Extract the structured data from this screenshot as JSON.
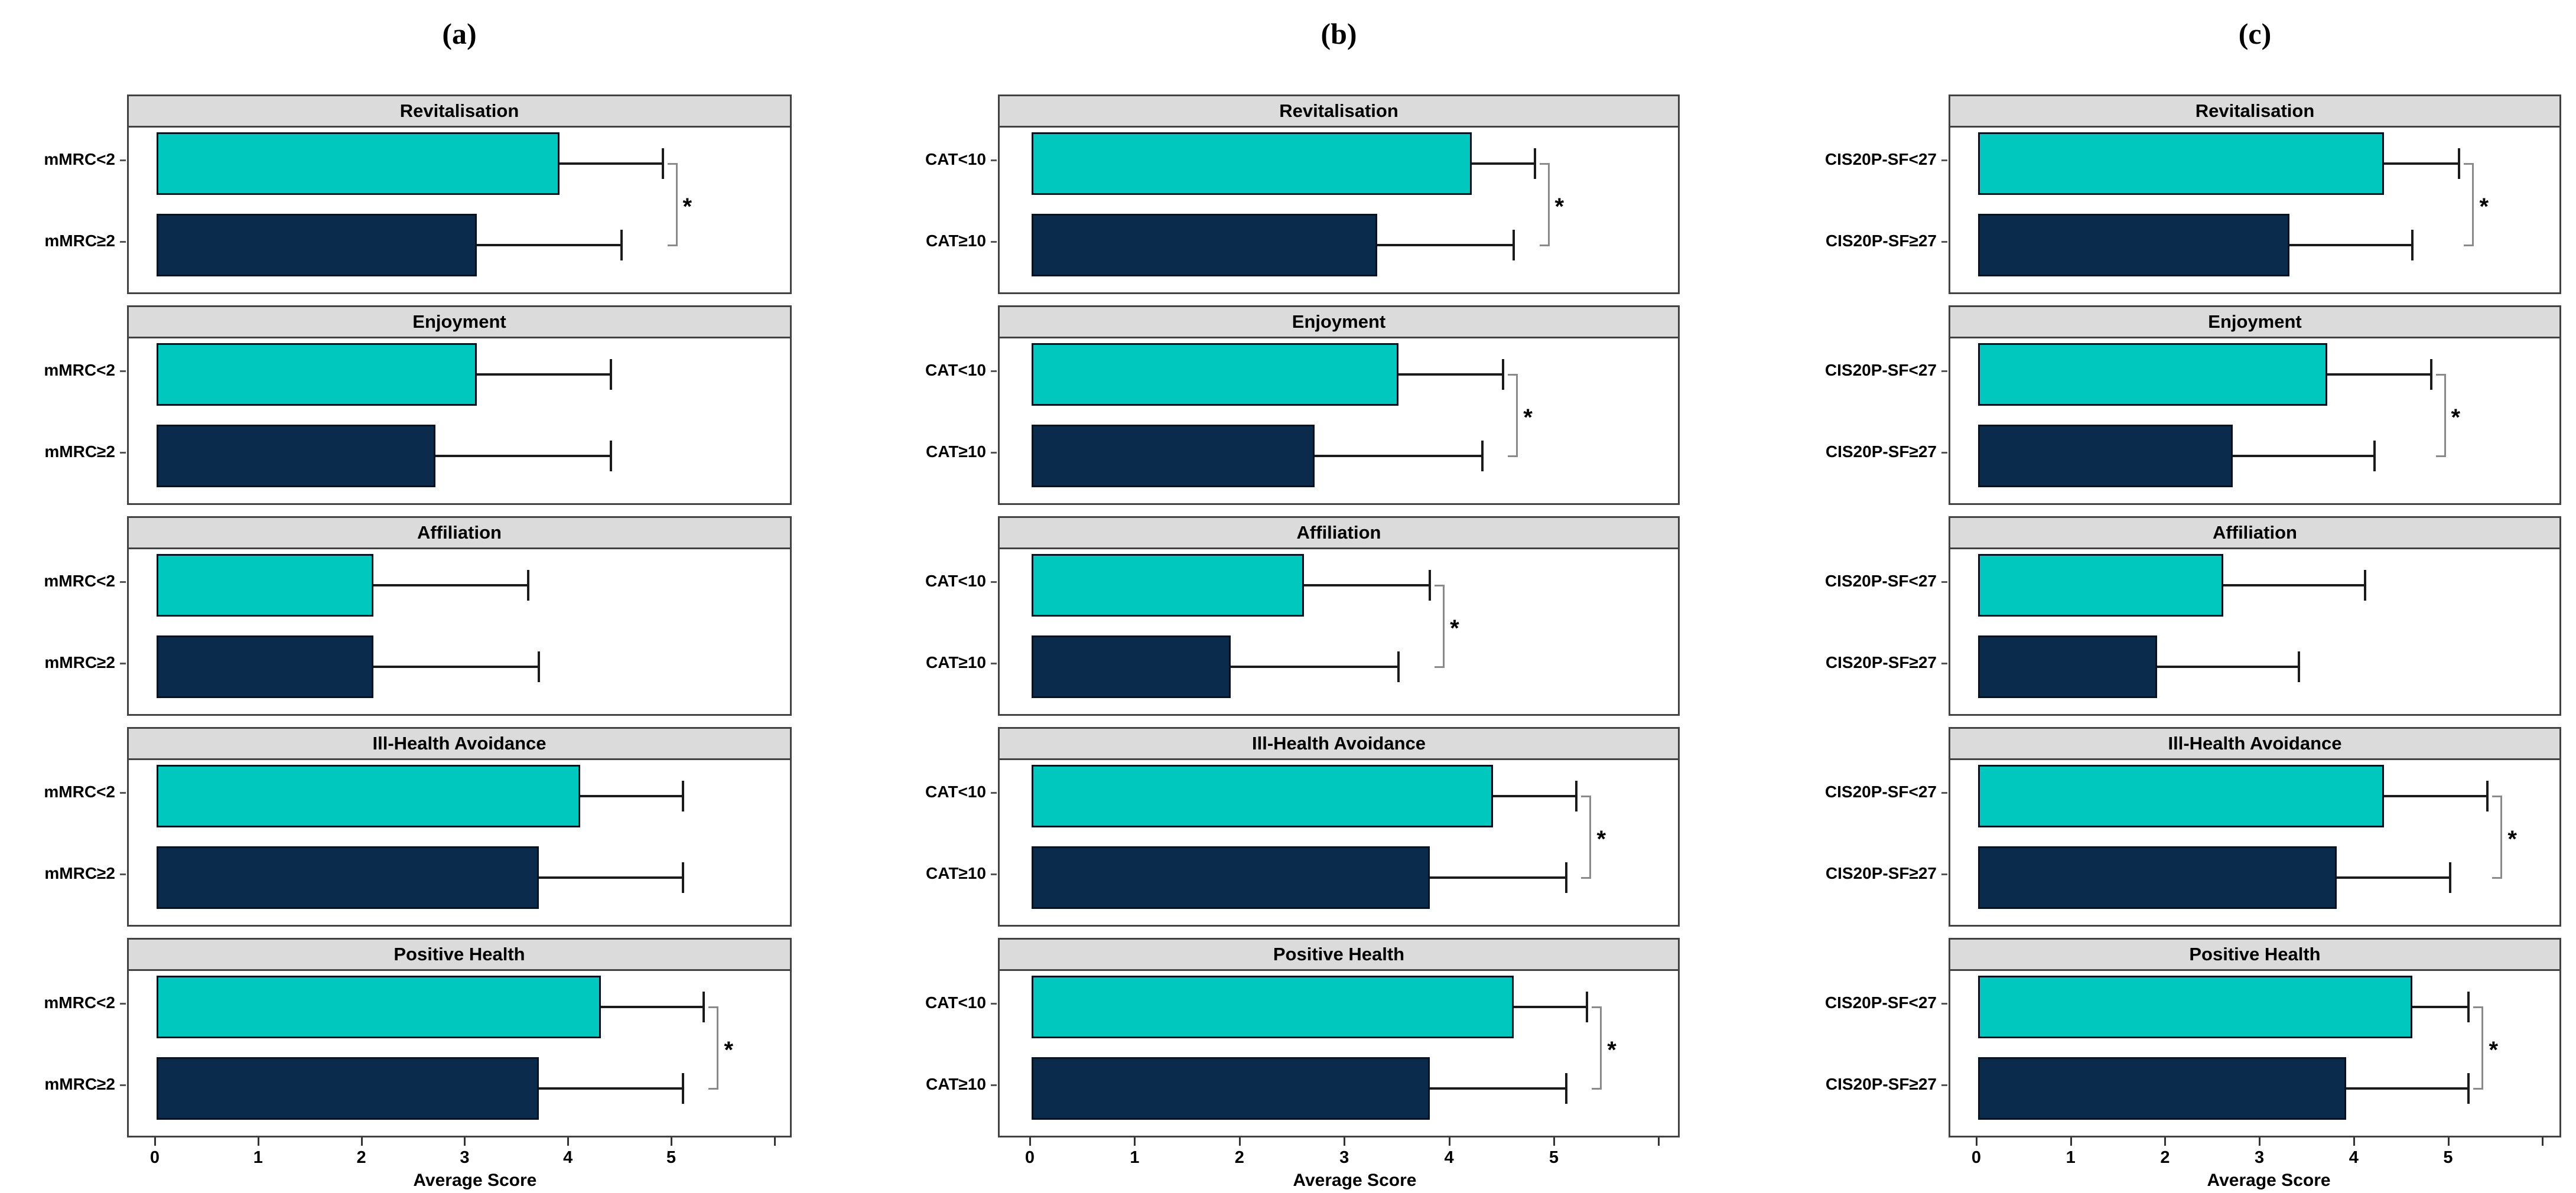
{
  "figure": {
    "xlabel": "Average Score",
    "x_ticks_labeled": [
      0,
      1,
      2,
      3,
      4,
      5
    ],
    "x_axis_max": 6.2,
    "sig_symbol": "*",
    "colors": {
      "group1_fill": "#00c8bf",
      "group2_fill": "#0b2b4c",
      "facet_header": "#dbdbdb",
      "facet_border": "#424242",
      "error_bar": "#1b1b1b",
      "sig_bracket": "#8a8a8a"
    }
  },
  "chart_data": [
    {
      "type": "bar",
      "panel_label": "(a)",
      "orientation": "horizontal",
      "xlabel": "Average Score",
      "xlim": [
        0,
        6.2
      ],
      "categories": [
        "Revitalisation",
        "Enjoyment",
        "Affiliation",
        "Ill-Health Avoidance",
        "Positive Health"
      ],
      "groups": [
        "mMRC<2",
        "mMRC≥2"
      ],
      "series": [
        {
          "name": "mMRC<2",
          "values": [
            3.9,
            3.1,
            2.1,
            4.1,
            4.3
          ],
          "error_to": [
            4.9,
            4.4,
            3.6,
            5.1,
            5.3
          ]
        },
        {
          "name": "mMRC≥2",
          "values": [
            3.1,
            2.7,
            2.1,
            3.7,
            3.7
          ],
          "error_to": [
            4.5,
            4.4,
            3.7,
            5.1,
            5.1
          ]
        }
      ],
      "significant": [
        true,
        false,
        false,
        false,
        true
      ]
    },
    {
      "type": "bar",
      "panel_label": "(b)",
      "orientation": "horizontal",
      "xlabel": "Average Score",
      "xlim": [
        0,
        6.2
      ],
      "categories": [
        "Revitalisation",
        "Enjoyment",
        "Affiliation",
        "Ill-Health Avoidance",
        "Positive Health"
      ],
      "groups": [
        "CAT<10",
        "CAT≥10"
      ],
      "series": [
        {
          "name": "CAT<10",
          "values": [
            4.2,
            3.5,
            2.6,
            4.4,
            4.6
          ],
          "error_to": [
            4.8,
            4.5,
            3.8,
            5.2,
            5.3
          ]
        },
        {
          "name": "CAT≥10",
          "values": [
            3.3,
            2.7,
            1.9,
            3.8,
            3.8
          ],
          "error_to": [
            4.6,
            4.3,
            3.5,
            5.1,
            5.1
          ]
        }
      ],
      "significant": [
        true,
        true,
        true,
        true,
        true
      ]
    },
    {
      "type": "bar",
      "panel_label": "(c)",
      "orientation": "horizontal",
      "xlabel": "Average Score",
      "xlim": [
        0,
        6.2
      ],
      "categories": [
        "Revitalisation",
        "Enjoyment",
        "Affiliation",
        "Ill-Health Avoidance",
        "Positive Health"
      ],
      "groups": [
        "CIS20P-SF<27",
        "CIS20P-SF≥27"
      ],
      "series": [
        {
          "name": "CIS20P-SF<27",
          "values": [
            4.3,
            3.7,
            2.6,
            4.3,
            4.6
          ],
          "error_to": [
            5.1,
            4.8,
            4.1,
            5.4,
            5.2
          ]
        },
        {
          "name": "CIS20P-SF≥27",
          "values": [
            3.3,
            2.7,
            1.9,
            3.8,
            3.9
          ],
          "error_to": [
            4.6,
            4.2,
            3.4,
            5.0,
            5.2
          ]
        }
      ],
      "significant": [
        true,
        true,
        false,
        true,
        true
      ]
    }
  ]
}
